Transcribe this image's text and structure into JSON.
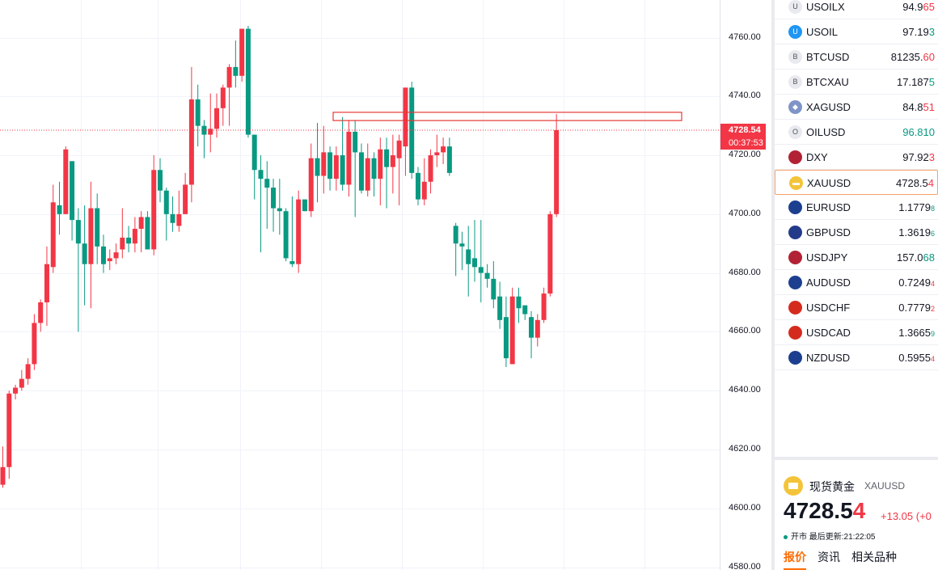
{
  "chart": {
    "symbol": "XAUUSD",
    "current_price": "4728.54",
    "countdown": "00:37:53",
    "colors": {
      "up": "#f23645",
      "down": "#089981",
      "grid": "#f0f3fa",
      "box": "#e53935"
    }
  },
  "chart_data": {
    "type": "candlestick",
    "ylim": [
      4580,
      4765
    ],
    "y_ticks": [
      "4760.00",
      "4740.00",
      "4720.00",
      "4700.00",
      "4680.00",
      "4660.00",
      "4640.00",
      "4620.00",
      "4600.00",
      "4580.00"
    ],
    "resistance_zone": [
      4731.8,
      4734.6
    ],
    "candles": [
      [
        4608,
        4614,
        4607,
        4621
      ],
      [
        4614,
        4639,
        4610,
        4640
      ],
      [
        4639,
        4641,
        4637,
        4642
      ],
      [
        4641,
        4644,
        4640,
        4647
      ],
      [
        4644,
        4649,
        4642,
        4651
      ],
      [
        4649,
        4663,
        4647,
        4666
      ],
      [
        4663,
        4670,
        4660,
        4671
      ],
      [
        4670,
        4683,
        4662,
        4689
      ],
      [
        4682,
        4704,
        4680,
        4710
      ],
      [
        4703,
        4700,
        4693,
        4711
      ],
      [
        4700,
        4722,
        4700,
        4723
      ],
      [
        4718,
        4698,
        4691,
        4718
      ],
      [
        4698,
        4690,
        4660,
        4702
      ],
      [
        4690,
        4683,
        4669,
        4703
      ],
      [
        4683,
        4702,
        4668,
        4711
      ],
      [
        4702,
        4689,
        4683,
        4707
      ],
      [
        4689,
        4683,
        4680,
        4693
      ],
      [
        4684,
        4685,
        4681,
        4688
      ],
      [
        4685,
        4687,
        4683,
        4690
      ],
      [
        4688,
        4692,
        4685,
        4702
      ],
      [
        4692,
        4690,
        4687,
        4696
      ],
      [
        4690,
        4695,
        4687,
        4699
      ],
      [
        4695,
        4699,
        4687,
        4701
      ],
      [
        4699,
        4688,
        4688,
        4701
      ],
      [
        4688,
        4715,
        4686,
        4720
      ],
      [
        4715,
        4708,
        4704,
        4719
      ],
      [
        4708,
        4700,
        4691,
        4709
      ],
      [
        4700,
        4697,
        4694,
        4706
      ],
      [
        4696,
        4700,
        4694,
        4708
      ],
      [
        4700,
        4710,
        4700,
        4714
      ],
      [
        4710,
        4739,
        4704,
        4750
      ],
      [
        4739,
        4730,
        4723,
        4744
      ],
      [
        4730,
        4727,
        4719,
        4732
      ],
      [
        4727,
        4729,
        4721,
        4741
      ],
      [
        4729,
        4736,
        4726,
        4741
      ],
      [
        4736,
        4743,
        4730,
        4744
      ],
      [
        4743,
        4750,
        4730,
        4751
      ],
      [
        4750,
        4747,
        4743,
        4759
      ],
      [
        4747,
        4763,
        4745,
        4763
      ],
      [
        4763,
        4727,
        4726,
        4764
      ],
      [
        4727,
        4715,
        4705,
        4727
      ],
      [
        4715,
        4712,
        4687,
        4720
      ],
      [
        4712,
        4709,
        4695,
        4718
      ],
      [
        4709,
        4702,
        4694,
        4712
      ],
      [
        4702,
        4701,
        4693,
        4712
      ],
      [
        4701,
        4685,
        4684,
        4702
      ],
      [
        4684,
        4683,
        4682,
        4706
      ],
      [
        4683,
        4705,
        4680,
        4708
      ],
      [
        4705,
        4701,
        4701,
        4704
      ],
      [
        4701,
        4719,
        4699,
        4724
      ],
      [
        4719,
        4713,
        4704,
        4731
      ],
      [
        4713,
        4721,
        4707,
        4730
      ],
      [
        4721,
        4712,
        4708,
        4723
      ],
      [
        4712,
        4720,
        4708,
        4723
      ],
      [
        4720,
        4710,
        4708,
        4733
      ],
      [
        4710,
        4728,
        4706,
        4732
      ],
      [
        4728,
        4721,
        4699,
        4732
      ],
      [
        4721,
        4708,
        4707,
        4724
      ],
      [
        4708,
        4719,
        4706,
        4724
      ],
      [
        4719,
        4712,
        4706,
        4721
      ],
      [
        4712,
        4722,
        4703,
        4726
      ],
      [
        4722,
        4716,
        4702,
        4726
      ],
      [
        4716,
        4720,
        4707,
        4727
      ],
      [
        4719,
        4725,
        4703,
        4727
      ],
      [
        4723,
        4743,
        4713,
        4743
      ],
      [
        4743,
        4714,
        4712,
        4745
      ],
      [
        4714,
        4705,
        4703,
        4716
      ],
      [
        4705,
        4711,
        4703,
        4719
      ],
      [
        4711,
        4720,
        4707,
        4722
      ],
      [
        4720,
        4721,
        4716,
        4727
      ],
      [
        4721,
        4723,
        4717,
        4726
      ],
      [
        4723,
        4714,
        4713,
        4726
      ],
      [
        4696,
        4690,
        4679,
        4697
      ],
      [
        4690,
        4689,
        4681,
        4694
      ],
      [
        4688,
        4683,
        4672,
        4696
      ],
      [
        4685,
        4682,
        4677,
        4698
      ],
      [
        4682,
        4680,
        4670,
        4698
      ],
      [
        4680,
        4678,
        4675,
        4683
      ],
      [
        4678,
        4671,
        4668,
        4684
      ],
      [
        4672,
        4664,
        4661,
        4677
      ],
      [
        4665,
        4651,
        4648,
        4672
      ],
      [
        4649,
        4672,
        4649,
        4675
      ],
      [
        4672,
        4668,
        4663,
        4675
      ],
      [
        4669,
        4666,
        4664,
        4668
      ],
      [
        4665,
        4658,
        4651,
        4667
      ],
      [
        4658,
        4664,
        4655,
        4666
      ],
      [
        4664,
        4673,
        4663,
        4675
      ],
      [
        4673,
        4700,
        4672,
        4701
      ],
      [
        4700,
        4728.54,
        4699,
        4734
      ]
    ]
  },
  "watchlist": [
    {
      "icon": "usoilx-icon",
      "icon_char": "U",
      "icon_bg": "#e8eaf0",
      "symbol": "USOILX",
      "price_main": "94.9",
      "price_hl": "65",
      "dir": "down"
    },
    {
      "icon": "usoil-icon",
      "icon_char": "U",
      "icon_bg": "#2196f3",
      "symbol": "USOIL",
      "price_main": "97.19",
      "price_hl": "3",
      "dir": "up"
    },
    {
      "icon": "btcusd-icon",
      "icon_char": "B",
      "icon_bg": "#e8eaf0",
      "symbol": "BTCUSD",
      "price_main": "81235.",
      "price_hl": "60",
      "dir": "down"
    },
    {
      "icon": "btcxau-icon",
      "icon_char": "B",
      "icon_bg": "#e8eaf0",
      "symbol": "BTCXAU",
      "price_main": "17.187",
      "price_hl": "5",
      "dir": "up"
    },
    {
      "icon": "xagusd-icon",
      "icon_char": "◆",
      "icon_bg": "#7f95c7",
      "symbol": "XAGUSD",
      "price_main": "84.8",
      "price_hl": "51",
      "dir": "down"
    },
    {
      "icon": "oilusd-icon",
      "icon_char": "O",
      "icon_bg": "#e8eaf0",
      "symbol": "OILUSD",
      "price_main": "96.810",
      "price_hl": "",
      "dir": "up"
    },
    {
      "icon": "dxy-flag-icon",
      "icon_char": "",
      "icon_bg": "#b22234",
      "symbol": "DXY",
      "price_main": "97.92",
      "price_hl": "3",
      "dir": "down"
    },
    {
      "icon": "xauusd-icon",
      "icon_char": "▬",
      "icon_bg": "#f3c43a",
      "symbol": "XAUUSD",
      "price_main": "4728.5",
      "price_hl": "4",
      "dir": "down"
    },
    {
      "icon": "eurusd-flag-icon",
      "icon_char": "",
      "icon_bg": "#1d3f8f",
      "symbol": "EURUSD",
      "price_main": "1.1779",
      "price_hl": "8",
      "dir": "up",
      "small": true
    },
    {
      "icon": "gbpusd-flag-icon",
      "icon_char": "",
      "icon_bg": "#243b8a",
      "symbol": "GBPUSD",
      "price_main": "1.3619",
      "price_hl": "6",
      "dir": "up",
      "small": true
    },
    {
      "icon": "usdjpy-flag-icon",
      "icon_char": "",
      "icon_bg": "#b22234",
      "symbol": "USDJPY",
      "price_main": "157.0",
      "price_hl": "68",
      "dir": "up"
    },
    {
      "icon": "audusd-flag-icon",
      "icon_char": "",
      "icon_bg": "#1d3f8f",
      "symbol": "AUDUSD",
      "price_main": "0.7249",
      "price_hl": "4",
      "dir": "down",
      "small": true
    },
    {
      "icon": "usdchf-flag-icon",
      "icon_char": "",
      "icon_bg": "#d52b1e",
      "symbol": "USDCHF",
      "price_main": "0.7779",
      "price_hl": "2",
      "dir": "down",
      "small": true
    },
    {
      "icon": "usdcad-flag-icon",
      "icon_char": "",
      "icon_bg": "#d52b1e",
      "symbol": "USDCAD",
      "price_main": "1.3665",
      "price_hl": "9",
      "dir": "up",
      "small": true
    },
    {
      "icon": "nzdusd-flag-icon",
      "icon_char": "",
      "icon_bg": "#1d3f8f",
      "symbol": "NZDUSD",
      "price_main": "0.5955",
      "price_hl": "4",
      "dir": "down",
      "small": true
    }
  ],
  "detail": {
    "name": "现货黄金",
    "code": "XAUUSD",
    "price_main": "4728.5",
    "price_last": "4",
    "change": "+13.05 (+0",
    "status": "开市 最后更新:21:22:05",
    "tabs": [
      "报价",
      "资讯",
      "相关品种"
    ]
  }
}
